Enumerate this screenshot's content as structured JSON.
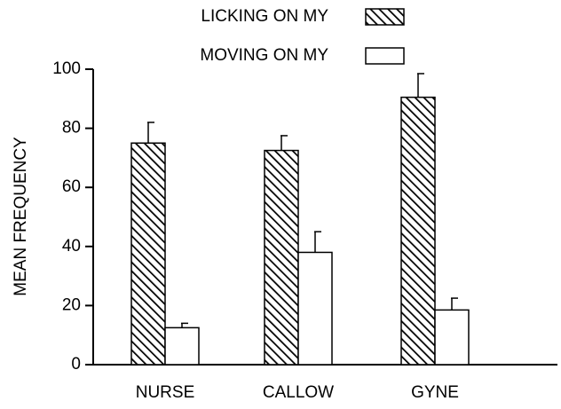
{
  "chart_data": {
    "type": "bar",
    "y_label": "MEAN FREQUENCY",
    "categories": [
      "NURSE",
      "CALLOW",
      "GYNE"
    ],
    "series": [
      {
        "name": "LICKING ON MY",
        "color": "#000000",
        "pattern": "hatch",
        "values": [
          75,
          72.5,
          90.5
        ],
        "errors": [
          7,
          5,
          8
        ]
      },
      {
        "name": "MOVING ON MY",
        "color": "#000000",
        "pattern": "none",
        "values": [
          12.5,
          38,
          18.5
        ],
        "errors": [
          1.5,
          7,
          4
        ]
      }
    ],
    "ylim": [
      0,
      100
    ],
    "yticks": [
      0,
      20,
      40,
      60,
      80,
      100
    ],
    "error_bars": "upper",
    "legend": "top"
  }
}
